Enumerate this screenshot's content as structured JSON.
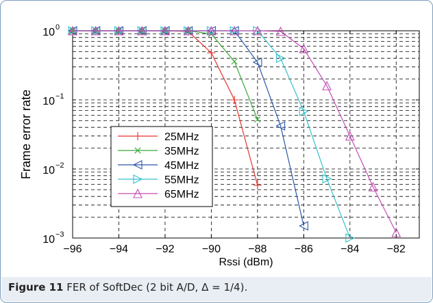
{
  "caption": {
    "label": "Figure 11",
    "text": "FER of SoftDec (2 bit A/D, Δ = 1/4)."
  },
  "chart_data": {
    "type": "line",
    "title": "",
    "xlabel": "Rssi (dBm)",
    "ylabel": "Frame error rate",
    "xlim": [
      -96,
      -81
    ],
    "ylim": [
      0.001,
      1
    ],
    "yscale": "log",
    "x_ticks": [
      -96,
      -94,
      -92,
      -90,
      -88,
      -86,
      -84,
      -82
    ],
    "x_tick_labels": [
      "−96",
      "−94",
      "−92",
      "−90",
      "−88",
      "−86",
      "−84",
      "−82"
    ],
    "y_ticks": [
      0.001,
      0.01,
      0.1,
      1
    ],
    "y_tick_base": [
      "10",
      "10",
      "10",
      "10"
    ],
    "y_tick_exp": [
      "−3",
      "−2",
      "−1",
      "0"
    ],
    "grid": true,
    "legend_position": "lower-left",
    "series": [
      {
        "name": "25MHz",
        "color": "#e8322c",
        "marker": "plus",
        "x": [
          -96,
          -95,
          -94,
          -93,
          -92,
          -91,
          -90,
          -89,
          -88
        ],
        "y": [
          1,
          1,
          1,
          1,
          1,
          0.98,
          0.48,
          0.1,
          0.0058
        ]
      },
      {
        "name": "35MHz",
        "color": "#3aa63a",
        "marker": "x",
        "x": [
          -96,
          -95,
          -94,
          -93,
          -92,
          -91,
          -90,
          -89,
          -88
        ],
        "y": [
          1,
          1,
          1,
          1,
          1,
          1,
          0.9,
          0.36,
          0.052
        ]
      },
      {
        "name": "45MHz",
        "color": "#2a56a8",
        "marker": "triangle-left",
        "x": [
          -96,
          -95,
          -94,
          -93,
          -92,
          -91,
          -90,
          -89,
          -88,
          -87,
          -86
        ],
        "y": [
          1,
          1,
          1,
          1,
          1,
          1,
          1,
          1,
          0.35,
          0.042,
          0.0015
        ]
      },
      {
        "name": "55MHz",
        "color": "#32c0cc",
        "marker": "triangle-right",
        "x": [
          -96,
          -95,
          -94,
          -93,
          -92,
          -91,
          -90,
          -89,
          -88,
          -87,
          -86,
          -85,
          -84
        ],
        "y": [
          1,
          1,
          1,
          1,
          1,
          1,
          1,
          1,
          1,
          0.4,
          0.068,
          0.0072,
          0.001
        ]
      },
      {
        "name": "65MHz",
        "color": "#c24cb4",
        "marker": "triangle-up",
        "x": [
          -96,
          -95,
          -94,
          -93,
          -92,
          -91,
          -90,
          -89,
          -88,
          -87,
          -86,
          -85,
          -84,
          -83,
          -82
        ],
        "y": [
          1,
          1,
          1,
          1,
          1,
          1,
          1,
          1,
          1,
          0.98,
          0.55,
          0.16,
          0.03,
          0.0055,
          0.0012
        ]
      }
    ]
  }
}
